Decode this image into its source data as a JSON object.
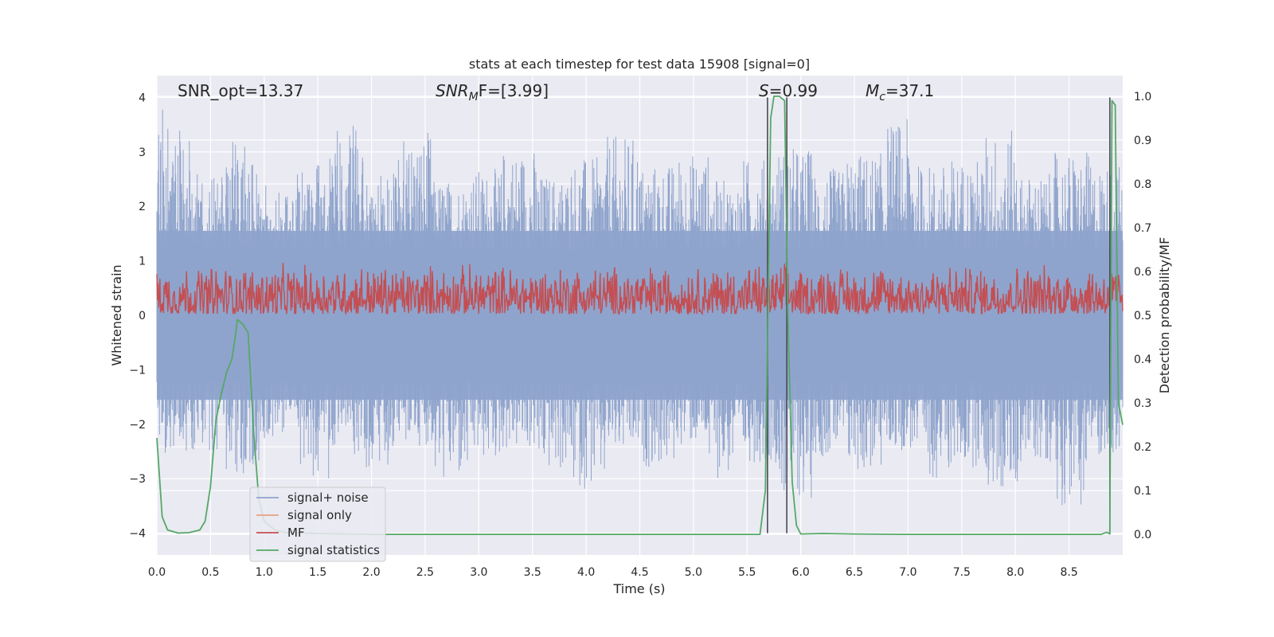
{
  "chart_data": {
    "type": "line",
    "title": "stats at each timestep for test data 15908 [signal=0]",
    "xlabel": "Time (s)",
    "ylabel": "Whitened strain",
    "y2label": "Detection probability/MF",
    "xlim": [
      0.0,
      9.0
    ],
    "ylim": [
      -4.4,
      4.4
    ],
    "y2lim": [
      -0.047,
      1.047
    ],
    "x_ticks": [
      "0.0",
      "0.5",
      "1.0",
      "1.5",
      "2.0",
      "2.5",
      "3.0",
      "3.5",
      "4.0",
      "4.5",
      "5.0",
      "5.5",
      "6.0",
      "6.5",
      "7.0",
      "7.5",
      "8.0",
      "8.5"
    ],
    "y_ticks": [
      "4",
      "3",
      "2",
      "1",
      "0",
      "−1",
      "−2",
      "−3",
      "−4"
    ],
    "y2_ticks": [
      "1.0",
      "0.9",
      "0.8",
      "0.7",
      "0.6",
      "0.5",
      "0.4",
      "0.3",
      "0.2",
      "0.1",
      "0.0"
    ],
    "grid": true,
    "legend_placement": "lower-left",
    "annotations": {
      "snr_opt": "SNR_opt=13.37",
      "snr_mf_main": "SNR",
      "snr_mf_sub": "M",
      "snr_mf_rest": "F=[3.99]",
      "s_main": "S",
      "s_rest": "=0.99",
      "mc_main": "M",
      "mc_sub": "c",
      "mc_rest": "=37.1"
    },
    "vertical_lines_x": [
      5.69,
      5.87,
      8.88
    ],
    "series": [
      {
        "name": "signal+ noise",
        "color": "#8fa4cc",
        "description_values": "noise band",
        "envelope_upper": [
          3.8,
          2.6,
          3.2,
          2.4,
          2.8,
          3.5,
          2.6,
          3.4,
          2.5,
          2.7,
          3.1,
          2.6,
          2.9,
          3.3,
          2.8,
          3.0,
          2.5,
          2.9,
          3.1,
          2.7,
          3.0,
          3.6,
          2.8,
          2.9,
          3.4,
          2.6,
          3.0,
          2.8
        ],
        "envelope_lower": [
          -2.6,
          -2.5,
          -2.9,
          -2.3,
          -3.0,
          -2.6,
          -2.8,
          -2.4,
          -3.1,
          -2.7,
          -2.5,
          -2.9,
          -3.2,
          -2.6,
          -2.8,
          -2.4,
          -3.0,
          -2.7,
          -3.4,
          -2.6,
          -2.9,
          -2.5,
          -3.0,
          -2.8,
          -3.3,
          -2.7,
          -3.5,
          -2.6
        ]
      },
      {
        "name": "signal only",
        "color": "#e8a07e",
        "values": []
      },
      {
        "name": "MF",
        "color": "#c44e52",
        "y2_band": [
          0.5,
          0.62
        ]
      },
      {
        "name": "signal statistics",
        "color": "#55a868",
        "x": [
          0.0,
          0.05,
          0.1,
          0.2,
          0.3,
          0.4,
          0.45,
          0.5,
          0.55,
          0.6,
          0.65,
          0.7,
          0.73,
          0.75,
          0.8,
          0.85,
          0.9,
          0.95,
          1.0,
          1.1,
          1.2,
          1.5,
          2.0,
          3.0,
          4.0,
          5.0,
          5.5,
          5.62,
          5.67,
          5.72,
          5.75,
          5.8,
          5.85,
          5.88,
          5.92,
          5.96,
          6.0,
          6.2,
          6.5,
          7.0,
          8.0,
          8.8,
          8.85,
          8.88,
          8.9,
          8.93,
          8.96,
          9.0
        ],
        "y": [
          0.22,
          0.04,
          0.01,
          0.003,
          0.004,
          0.01,
          0.03,
          0.11,
          0.26,
          0.32,
          0.37,
          0.4,
          0.45,
          0.49,
          0.48,
          0.46,
          0.24,
          0.08,
          0.03,
          0.01,
          0.004,
          0.002,
          0.0,
          0.0,
          0.0,
          0.0,
          0.0,
          0.0,
          0.1,
          0.95,
          1.0,
          1.0,
          0.99,
          0.5,
          0.12,
          0.02,
          0.001,
          0.002,
          0.001,
          0.0,
          0.0,
          0.0,
          0.005,
          0.001,
          0.99,
          0.98,
          0.3,
          0.25
        ]
      }
    ]
  }
}
